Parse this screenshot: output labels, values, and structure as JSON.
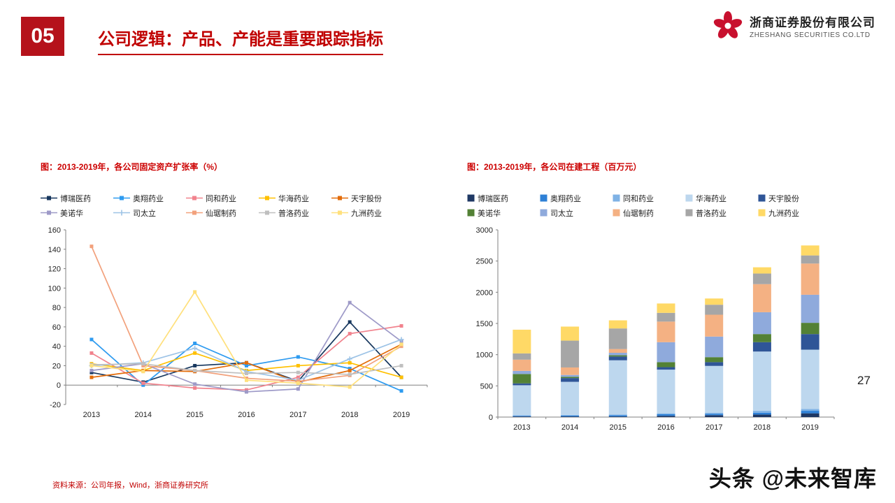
{
  "header": {
    "badge": "05",
    "title": "公司逻辑：产品、产能是重要跟踪指标"
  },
  "logo": {
    "company_cn": "浙商证券股份有限公司",
    "company_en": "ZHESHANG SECURITIES CO.LTD",
    "brand_color": "#c8102e"
  },
  "page_number": "27",
  "footer": {
    "source": "资料来源：公司年报，Wind，浙商证券研究所"
  },
  "watermark": "头条 @未来智库",
  "chart_data": [
    {
      "type": "line",
      "title": "图：2013-2019年，各公司固定资产扩张率（%）",
      "categories": [
        "2013",
        "2014",
        "2015",
        "2016",
        "2017",
        "2018",
        "2019"
      ],
      "ylim": [
        -20,
        160
      ],
      "ytick_step": 20,
      "grid": false,
      "legend_position": "top",
      "series": [
        {
          "name": "博瑞医药",
          "color": "#17375e",
          "marker": "square",
          "values": [
            13,
            3,
            20,
            23,
            4,
            65,
            8
          ]
        },
        {
          "name": "奥翔药业",
          "color": "#2e9bf0",
          "marker": "square",
          "values": [
            47,
            0,
            43,
            20,
            29,
            17,
            -6
          ]
        },
        {
          "name": "同和药业",
          "color": "#f1828d",
          "marker": "square",
          "values": [
            33,
            2,
            -3,
            -5,
            8,
            53,
            61
          ]
        },
        {
          "name": "华海药业",
          "color": "#ffc000",
          "marker": "square",
          "values": [
            22,
            15,
            33,
            15,
            20,
            23,
            8
          ]
        },
        {
          "name": "天宇股份",
          "color": "#e36c0a",
          "marker": "square",
          "values": [
            8,
            15,
            14,
            23,
            3,
            15,
            42
          ]
        },
        {
          "name": "美诺华",
          "color": "#9e9ac8",
          "marker": "square",
          "values": [
            15,
            22,
            1,
            -7,
            -4,
            85,
            45
          ]
        },
        {
          "name": "司太立",
          "color": "#9dc3e6",
          "marker": "plus",
          "values": [
            20,
            23,
            38,
            14,
            5,
            27,
            47
          ]
        },
        {
          "name": "仙琚制药",
          "color": "#f2a17c",
          "marker": "square",
          "values": [
            143,
            20,
            15,
            7,
            4,
            10,
            40
          ]
        },
        {
          "name": "普洛药业",
          "color": "#bfbfbf",
          "marker": "square",
          "values": [
            21,
            22,
            15,
            12,
            13,
            11,
            20
          ]
        },
        {
          "name": "九洲药业",
          "color": "#ffe07c",
          "marker": "square",
          "values": [
            20,
            14,
            96,
            5,
            2,
            -2,
            42
          ]
        }
      ]
    },
    {
      "type": "stacked-bar",
      "title": "图：2013-2019年，各公司在建工程（百万元）",
      "categories": [
        "2013",
        "2014",
        "2015",
        "2016",
        "2017",
        "2018",
        "2019"
      ],
      "ylim": [
        0,
        3000
      ],
      "ytick_step": 500,
      "grid": false,
      "legend_position": "top",
      "series": [
        {
          "name": "博瑞医药",
          "color": "#1f3864",
          "values": [
            10,
            10,
            10,
            20,
            30,
            40,
            60
          ]
        },
        {
          "name": "奥翔药业",
          "color": "#2e80d6",
          "values": [
            10,
            15,
            20,
            25,
            20,
            30,
            40
          ]
        },
        {
          "name": "同和药业",
          "color": "#7fb2e5",
          "values": [
            10,
            10,
            10,
            15,
            20,
            30,
            30
          ]
        },
        {
          "name": "华海药业",
          "color": "#bdd7ee",
          "values": [
            480,
            530,
            870,
            700,
            750,
            950,
            950
          ]
        },
        {
          "name": "天宇股份",
          "color": "#2f5597",
          "values": [
            30,
            60,
            60,
            40,
            60,
            150,
            250
          ]
        },
        {
          "name": "美诺华",
          "color": "#538135",
          "values": [
            150,
            20,
            20,
            80,
            80,
            130,
            180
          ]
        },
        {
          "name": "司太立",
          "color": "#8faadc",
          "values": [
            50,
            30,
            40,
            320,
            330,
            350,
            450
          ]
        },
        {
          "name": "仙琚制药",
          "color": "#f4b183",
          "values": [
            180,
            120,
            60,
            330,
            350,
            450,
            500
          ]
        },
        {
          "name": "普洛药业",
          "color": "#a6a6a6",
          "values": [
            100,
            430,
            330,
            140,
            160,
            170,
            130
          ]
        },
        {
          "name": "九洲药业",
          "color": "#ffd966",
          "values": [
            380,
            225,
            130,
            150,
            100,
            100,
            160
          ]
        }
      ]
    }
  ]
}
